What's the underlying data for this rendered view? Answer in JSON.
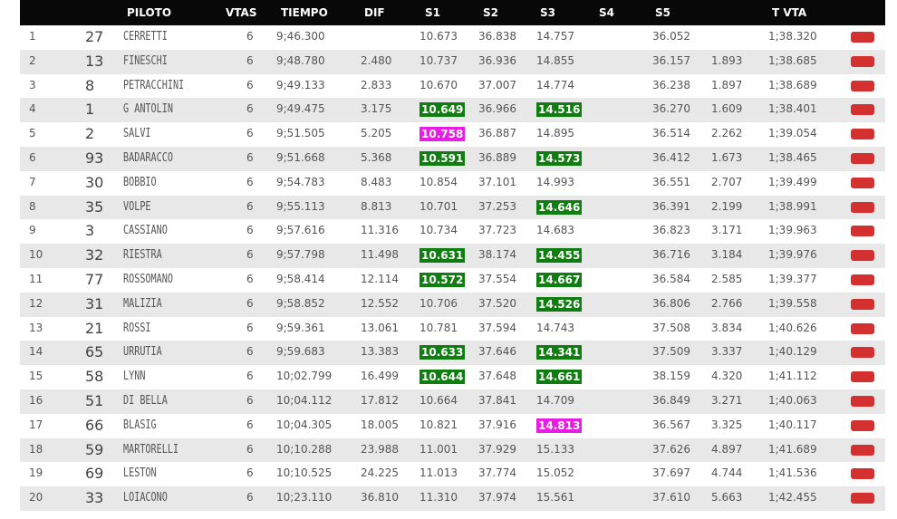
{
  "header": {
    "piloto": "PILOTO",
    "vtas": "VTAS",
    "tiempo": "TIEMPO",
    "dif": "DIF",
    "s1": "S1",
    "s2": "S2",
    "s3": "S3",
    "s4": "S4",
    "s5": "S5",
    "tvta": "T VTA"
  },
  "colors": {
    "header_bg": "#080808",
    "row_alt": "#e8e8e8",
    "best_sector": "#0f7d0f",
    "overall_best": "#e91ce6",
    "button": "#d43030"
  },
  "rows": [
    {
      "pos": "1",
      "num": "27",
      "name": "CERRETTI",
      "vtas": "6",
      "tiempo": "9;46.300",
      "dif": "",
      "s1": "10.673",
      "s1_hl": "",
      "s2": "36.838",
      "s3": "14.757",
      "s3_hl": "",
      "s4": "",
      "s5": "36.052",
      "gap": "",
      "tvta": "1;38.320"
    },
    {
      "pos": "2",
      "num": "13",
      "name": "FINESCHI",
      "vtas": "6",
      "tiempo": "9;48.780",
      "dif": "2.480",
      "s1": "10.737",
      "s1_hl": "",
      "s2": "36.936",
      "s3": "14.855",
      "s3_hl": "",
      "s4": "",
      "s5": "36.157",
      "gap": "1.893",
      "tvta": "1;38.685"
    },
    {
      "pos": "3",
      "num": "8",
      "name": "PETRACCHINI",
      "vtas": "6",
      "tiempo": "9;49.133",
      "dif": "2.833",
      "s1": "10.670",
      "s1_hl": "",
      "s2": "37.007",
      "s3": "14.774",
      "s3_hl": "",
      "s4": "",
      "s5": "36.238",
      "gap": "1.897",
      "tvta": "1;38.689"
    },
    {
      "pos": "4",
      "num": "1",
      "name": "G ANTOLIN",
      "vtas": "6",
      "tiempo": "9;49.475",
      "dif": "3.175",
      "s1": "10.649",
      "s1_hl": "green",
      "s2": "36.966",
      "s3": "14.516",
      "s3_hl": "green",
      "s4": "",
      "s5": "36.270",
      "gap": "1.609",
      "tvta": "1;38.401"
    },
    {
      "pos": "5",
      "num": "2",
      "name": "SALVI",
      "vtas": "6",
      "tiempo": "9;51.505",
      "dif": "5.205",
      "s1": "10.758",
      "s1_hl": "magenta",
      "s2": "36.887",
      "s3": "14.895",
      "s3_hl": "",
      "s4": "",
      "s5": "36.514",
      "gap": "2.262",
      "tvta": "1;39.054"
    },
    {
      "pos": "6",
      "num": "93",
      "name": "BADARACCO",
      "vtas": "6",
      "tiempo": "9;51.668",
      "dif": "5.368",
      "s1": "10.591",
      "s1_hl": "green",
      "s2": "36.889",
      "s3": "14.573",
      "s3_hl": "green",
      "s4": "",
      "s5": "36.412",
      "gap": "1.673",
      "tvta": "1;38.465"
    },
    {
      "pos": "7",
      "num": "30",
      "name": "BOBBIO",
      "vtas": "6",
      "tiempo": "9;54.783",
      "dif": "8.483",
      "s1": "10.854",
      "s1_hl": "",
      "s2": "37.101",
      "s3": "14.993",
      "s3_hl": "",
      "s4": "",
      "s5": "36.551",
      "gap": "2.707",
      "tvta": "1;39.499"
    },
    {
      "pos": "8",
      "num": "35",
      "name": "VOLPE",
      "vtas": "6",
      "tiempo": "9;55.113",
      "dif": "8.813",
      "s1": "10.701",
      "s1_hl": "",
      "s2": "37.253",
      "s3": "14.646",
      "s3_hl": "green",
      "s4": "",
      "s5": "36.391",
      "gap": "2.199",
      "tvta": "1;38.991"
    },
    {
      "pos": "9",
      "num": "3",
      "name": "CASSIANO",
      "vtas": "6",
      "tiempo": "9;57.616",
      "dif": "11.316",
      "s1": "10.734",
      "s1_hl": "",
      "s2": "37.723",
      "s3": "14.683",
      "s3_hl": "",
      "s4": "",
      "s5": "36.823",
      "gap": "3.171",
      "tvta": "1;39.963"
    },
    {
      "pos": "10",
      "num": "32",
      "name": "RIESTRA",
      "vtas": "6",
      "tiempo": "9;57.798",
      "dif": "11.498",
      "s1": "10.631",
      "s1_hl": "green",
      "s2": "38.174",
      "s3": "14.455",
      "s3_hl": "green",
      "s4": "",
      "s5": "36.716",
      "gap": "3.184",
      "tvta": "1;39.976"
    },
    {
      "pos": "11",
      "num": "77",
      "name": "ROSSOMANO",
      "vtas": "6",
      "tiempo": "9;58.414",
      "dif": "12.114",
      "s1": "10.572",
      "s1_hl": "green",
      "s2": "37.554",
      "s3": "14.667",
      "s3_hl": "green",
      "s4": "",
      "s5": "36.584",
      "gap": "2.585",
      "tvta": "1;39.377"
    },
    {
      "pos": "12",
      "num": "31",
      "name": "MALIZIA",
      "vtas": "6",
      "tiempo": "9;58.852",
      "dif": "12.552",
      "s1": "10.706",
      "s1_hl": "",
      "s2": "37.520",
      "s3": "14.526",
      "s3_hl": "green",
      "s4": "",
      "s5": "36.806",
      "gap": "2.766",
      "tvta": "1;39.558"
    },
    {
      "pos": "13",
      "num": "21",
      "name": "ROSSI",
      "vtas": "6",
      "tiempo": "9;59.361",
      "dif": "13.061",
      "s1": "10.781",
      "s1_hl": "",
      "s2": "37.594",
      "s3": "14.743",
      "s3_hl": "",
      "s4": "",
      "s5": "37.508",
      "gap": "3.834",
      "tvta": "1;40.626"
    },
    {
      "pos": "14",
      "num": "65",
      "name": "URRUTIA",
      "vtas": "6",
      "tiempo": "9;59.683",
      "dif": "13.383",
      "s1": "10.633",
      "s1_hl": "green",
      "s2": "37.646",
      "s3": "14.341",
      "s3_hl": "green",
      "s4": "",
      "s5": "37.509",
      "gap": "3.337",
      "tvta": "1;40.129"
    },
    {
      "pos": "15",
      "num": "58",
      "name": "LYNN",
      "vtas": "6",
      "tiempo": "10;02.799",
      "dif": "16.499",
      "s1": "10.644",
      "s1_hl": "green",
      "s2": "37.648",
      "s3": "14.661",
      "s3_hl": "green",
      "s4": "",
      "s5": "38.159",
      "gap": "4.320",
      "tvta": "1;41.112"
    },
    {
      "pos": "16",
      "num": "51",
      "name": "DI BELLA",
      "vtas": "6",
      "tiempo": "10;04.112",
      "dif": "17.812",
      "s1": "10.664",
      "s1_hl": "",
      "s2": "37.841",
      "s3": "14.709",
      "s3_hl": "",
      "s4": "",
      "s5": "36.849",
      "gap": "3.271",
      "tvta": "1;40.063"
    },
    {
      "pos": "17",
      "num": "66",
      "name": "BLASIG",
      "vtas": "6",
      "tiempo": "10;04.305",
      "dif": "18.005",
      "s1": "10.821",
      "s1_hl": "",
      "s2": "37.916",
      "s3": "14.813",
      "s3_hl": "magenta",
      "s4": "",
      "s5": "36.567",
      "gap": "3.325",
      "tvta": "1;40.117"
    },
    {
      "pos": "18",
      "num": "59",
      "name": "MARTORELLI",
      "vtas": "6",
      "tiempo": "10;10.288",
      "dif": "23.988",
      "s1": "11.001",
      "s1_hl": "",
      "s2": "37.929",
      "s3": "15.133",
      "s3_hl": "",
      "s4": "",
      "s5": "37.626",
      "gap": "4.897",
      "tvta": "1;41.689"
    },
    {
      "pos": "19",
      "num": "69",
      "name": "LESTON",
      "vtas": "6",
      "tiempo": "10;10.525",
      "dif": "24.225",
      "s1": "11.013",
      "s1_hl": "",
      "s2": "37.774",
      "s3": "15.052",
      "s3_hl": "",
      "s4": "",
      "s5": "37.697",
      "gap": "4.744",
      "tvta": "1;41.536"
    },
    {
      "pos": "20",
      "num": "33",
      "name": "LOIACONO",
      "vtas": "6",
      "tiempo": "10;23.110",
      "dif": "36.810",
      "s1": "11.310",
      "s1_hl": "",
      "s2": "37.974",
      "s3": "15.561",
      "s3_hl": "",
      "s4": "",
      "s5": "37.610",
      "gap": "5.663",
      "tvta": "1;42.455"
    }
  ]
}
